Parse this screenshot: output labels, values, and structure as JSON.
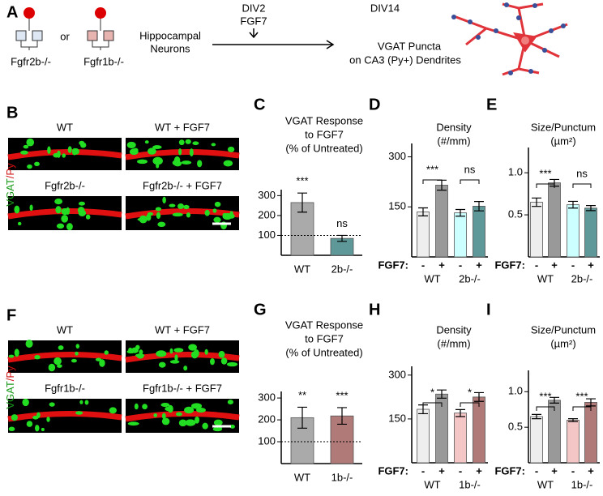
{
  "panel_a": {
    "label": "A",
    "genotypes": [
      "Fgfr2b-/-",
      "Fgfr1b-/-"
    ],
    "conjunction": "or",
    "neurons": [
      "Hippocampal",
      "Neurons"
    ],
    "treatment": [
      "DIV2",
      "FGF7"
    ],
    "endpoint": "DIV14",
    "readout": [
      "VGAT Puncta",
      "on CA3 (Py+) Dendrites"
    ]
  },
  "panel_b": {
    "label": "B",
    "images": [
      "WT",
      "WT + FGF7",
      "Fgfr2b-/-",
      "Fgfr2b-/- + FGF7"
    ],
    "stain": [
      "VGAT",
      "/Py"
    ]
  },
  "panel_f": {
    "label": "F",
    "images": [
      "WT",
      "WT + FGF7",
      "Fgfr1b-/-",
      "Fgfr1b-/- + FGF7"
    ],
    "stain": [
      "VGAT",
      "/Py"
    ]
  },
  "chart_data": [
    {
      "type": "bar",
      "label": "C",
      "title": [
        "VGAT Response",
        "to FGF7",
        "(% of Untreated)"
      ],
      "categories": [
        "WT",
        "2b-/-"
      ],
      "values": [
        265,
        85
      ],
      "errors": [
        48,
        15
      ],
      "colors": [
        "#aaaaaa",
        "#5f9898"
      ],
      "significance": [
        "***",
        "ns"
      ],
      "reference_line": 100,
      "ylim": [
        0,
        330
      ],
      "yticks": [
        100,
        200,
        300
      ]
    },
    {
      "type": "grouped_bar",
      "label": "D",
      "title": [
        "Density",
        "(#/mm)"
      ],
      "treatment_label": "FGF7:",
      "groups": [
        "WT",
        "2b-/-"
      ],
      "categories": [
        "-",
        "+",
        "-",
        "+"
      ],
      "values": [
        135,
        215,
        132,
        152
      ],
      "errors": [
        12,
        15,
        10,
        14
      ],
      "colors": [
        "#eeeeee",
        "#999999",
        "#ccffff",
        "#5f9898"
      ],
      "significance": [
        "***",
        "ns"
      ],
      "ylim": [
        0,
        340
      ],
      "yticks": [
        150,
        300
      ]
    },
    {
      "type": "grouped_bar",
      "label": "E",
      "title": [
        "Size/Punctum",
        "(µm²)"
      ],
      "treatment_label": "FGF7:",
      "groups": [
        "WT",
        "2b-/-"
      ],
      "categories": [
        "-",
        "+",
        "-",
        "+"
      ],
      "values": [
        0.65,
        0.88,
        0.62,
        0.58
      ],
      "errors": [
        0.05,
        0.04,
        0.04,
        0.03
      ],
      "colors": [
        "#eeeeee",
        "#999999",
        "#ccffff",
        "#5f9898"
      ],
      "significance": [
        "***",
        "ns"
      ],
      "ylim": [
        0,
        1.3
      ],
      "yticks": [
        0.5,
        {
          "value": 1,
          "label": "1.0"
        }
      ]
    },
    {
      "type": "bar",
      "label": "G",
      "title": [
        "VGAT Response",
        "to FGF7",
        "(% of Untreated)"
      ],
      "categories": [
        "WT",
        "1b-/-"
      ],
      "values": [
        210,
        218
      ],
      "errors": [
        48,
        38
      ],
      "colors": [
        "#aaaaaa",
        "#b07a78"
      ],
      "significance": [
        "**",
        "***"
      ],
      "reference_line": 100,
      "ylim": [
        0,
        330
      ],
      "yticks": [
        100,
        200,
        300
      ]
    },
    {
      "type": "grouped_bar",
      "label": "H",
      "title": [
        "Density",
        "(#/mm)"
      ],
      "treatment_label": "FGF7:",
      "groups": [
        "WT",
        "1b-/-"
      ],
      "categories": [
        "-",
        "+",
        "-",
        "+"
      ],
      "values": [
        183,
        235,
        170,
        225
      ],
      "errors": [
        15,
        14,
        12,
        15
      ],
      "colors": [
        "#eeeeee",
        "#999999",
        "#f4c6c6",
        "#b07a78"
      ],
      "significance": [
        "*",
        "*"
      ],
      "ylim": [
        0,
        330
      ],
      "yticks": [
        150,
        300
      ]
    },
    {
      "type": "grouped_bar",
      "label": "I",
      "title": [
        "Size/Punctum",
        "(µm²)"
      ],
      "treatment_label": "FGF7:",
      "groups": [
        "WT",
        "1b-/-"
      ],
      "categories": [
        "-",
        "+",
        "-",
        "+"
      ],
      "values": [
        0.65,
        0.88,
        0.6,
        0.85
      ],
      "errors": [
        0.03,
        0.04,
        0.02,
        0.05
      ],
      "colors": [
        "#eeeeee",
        "#999999",
        "#f4c6c6",
        "#b07a78"
      ],
      "significance": [
        "***",
        "***"
      ],
      "ylim": [
        0,
        1.3
      ],
      "yticks": [
        0.5,
        {
          "value": 1,
          "label": "1.0"
        }
      ]
    }
  ]
}
